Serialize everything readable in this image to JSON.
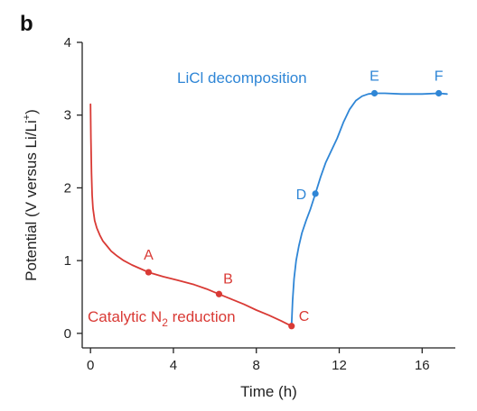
{
  "panel_label": "b",
  "chart_data": {
    "type": "line",
    "xlabel": "Time (h)",
    "ylabel_parts": {
      "prefix": "Potential (V versus Li/Li",
      "sup": "+",
      "suffix": ")"
    },
    "xlim": [
      -0.4,
      17.6
    ],
    "ylim": [
      -0.2,
      4
    ],
    "xticks": [
      0,
      4,
      8,
      12,
      16
    ],
    "yticks": [
      0,
      1,
      2,
      3,
      4
    ],
    "colors": {
      "red": "#d93a35",
      "blue": "#2f86d6",
      "axis": "#222222"
    },
    "series": [
      {
        "color_key": "red",
        "annotation_main": "Catalytic N",
        "annotation_sub": "2",
        "annotation_tail": " reduction",
        "x": [
          0.0,
          0.02,
          0.05,
          0.08,
          0.12,
          0.2,
          0.3,
          0.45,
          0.6,
          0.8,
          1.0,
          1.3,
          1.6,
          2.0,
          2.4,
          2.8,
          3.5,
          4.2,
          5.0,
          5.6,
          6.2,
          6.8,
          7.4,
          8.0,
          8.6,
          9.2,
          9.7
        ],
        "y": [
          3.15,
          2.7,
          2.2,
          1.9,
          1.72,
          1.55,
          1.45,
          1.35,
          1.27,
          1.2,
          1.13,
          1.06,
          1.0,
          0.94,
          0.89,
          0.84,
          0.78,
          0.73,
          0.67,
          0.61,
          0.54,
          0.47,
          0.4,
          0.32,
          0.25,
          0.17,
          0.1
        ]
      },
      {
        "color_key": "blue",
        "annotation_main": "LiCl decomposition",
        "x": [
          9.7,
          9.75,
          9.82,
          9.92,
          10.05,
          10.2,
          10.4,
          10.6,
          10.85,
          11.1,
          11.35,
          11.6,
          11.9,
          12.2,
          12.5,
          12.8,
          13.1,
          13.4,
          13.7,
          14.2,
          15.0,
          16.0,
          16.8,
          17.2
        ],
        "y": [
          0.1,
          0.45,
          0.75,
          1.0,
          1.2,
          1.38,
          1.55,
          1.7,
          1.92,
          2.15,
          2.35,
          2.5,
          2.68,
          2.9,
          3.08,
          3.2,
          3.26,
          3.29,
          3.3,
          3.3,
          3.29,
          3.29,
          3.3,
          3.29
        ]
      }
    ],
    "points": [
      {
        "label": "A",
        "x": 2.8,
        "y": 0.84,
        "color_key": "red",
        "anchor": "above"
      },
      {
        "label": "B",
        "x": 6.2,
        "y": 0.54,
        "color_key": "red",
        "anchor": "above-right"
      },
      {
        "label": "C",
        "x": 9.7,
        "y": 0.1,
        "color_key": "red",
        "anchor": "right-up"
      },
      {
        "label": "D",
        "x": 10.85,
        "y": 1.92,
        "color_key": "blue",
        "anchor": "left"
      },
      {
        "label": "E",
        "x": 13.7,
        "y": 3.3,
        "color_key": "blue",
        "anchor": "above"
      },
      {
        "label": "F",
        "x": 16.8,
        "y": 3.3,
        "color_key": "blue",
        "anchor": "above"
      }
    ]
  }
}
